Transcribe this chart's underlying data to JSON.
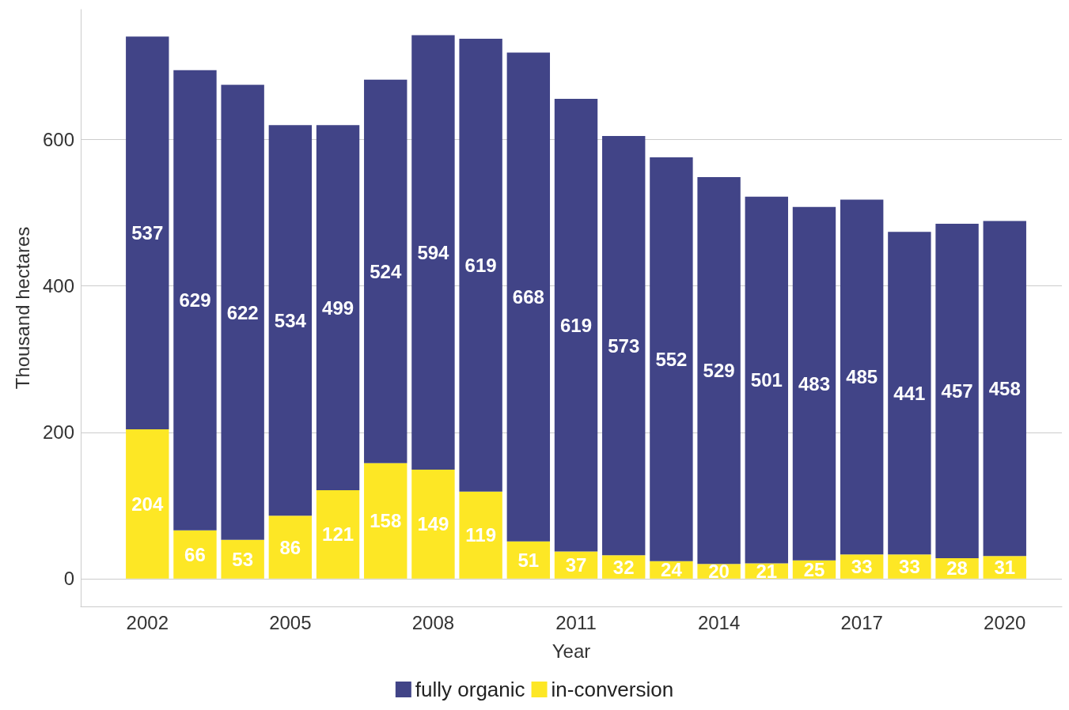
{
  "chart_data": {
    "type": "bar",
    "stacked": true,
    "xlabel": "Year",
    "ylabel": "Thousand hectares",
    "x": [
      2002,
      2003,
      2004,
      2005,
      2006,
      2007,
      2008,
      2009,
      2010,
      2011,
      2012,
      2013,
      2014,
      2015,
      2016,
      2017,
      2018,
      2019,
      2020
    ],
    "series": [
      {
        "name": "in-conversion",
        "color": "#fde725",
        "values": [
          204,
          66,
          53,
          86,
          121,
          158,
          149,
          119,
          51,
          37,
          32,
          24,
          20,
          21,
          25,
          33,
          33,
          28,
          31
        ]
      },
      {
        "name": "fully organic",
        "color": "#414487",
        "values": [
          537,
          629,
          622,
          534,
          499,
          524,
          594,
          619,
          668,
          619,
          573,
          552,
          529,
          501,
          483,
          485,
          441,
          457,
          458
        ]
      }
    ],
    "xlim": [
      2000.6,
      2021.2
    ],
    "xticks": [
      2002,
      2005,
      2008,
      2011,
      2014,
      2017,
      2020
    ],
    "ylim": [
      -38,
      778
    ],
    "yticks": [
      0,
      200,
      400,
      600
    ],
    "grid": "y",
    "legend": "bottom",
    "data_labels": true
  }
}
